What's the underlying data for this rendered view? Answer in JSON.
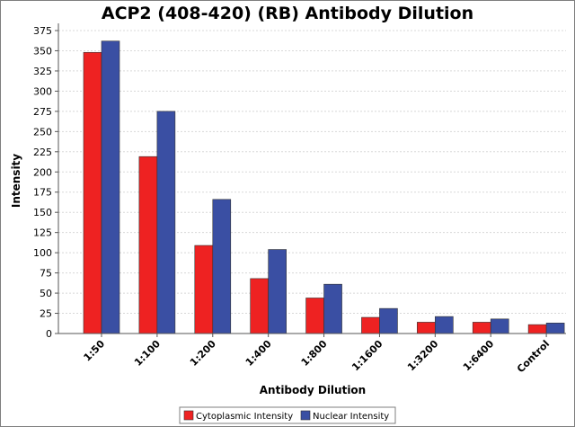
{
  "chart_data": {
    "type": "bar",
    "title": "ACP2 (408-420) (RB) Antibody Dilution",
    "xlabel": "Antibody Dilution",
    "ylabel": "Intensity",
    "ylim": [
      0,
      375
    ],
    "yticks": [
      0,
      25,
      50,
      75,
      100,
      125,
      150,
      175,
      200,
      225,
      250,
      275,
      300,
      325,
      350,
      375
    ],
    "grid": true,
    "legend_position": "bottom-center",
    "categories": [
      "1:50",
      "1:100",
      "1:200",
      "1:400",
      "1:800",
      "1:1600",
      "1:3200",
      "1:6400",
      "Control"
    ],
    "series": [
      {
        "name": "Cytoplasmic Intensity",
        "color": "#ee2222",
        "values": [
          348,
          219,
          109,
          68,
          44,
          20,
          14,
          14,
          11
        ]
      },
      {
        "name": "Nuclear Intensity",
        "color": "#3a4fa3",
        "values": [
          362,
          275,
          166,
          104,
          61,
          31,
          21,
          18,
          13
        ]
      }
    ]
  }
}
